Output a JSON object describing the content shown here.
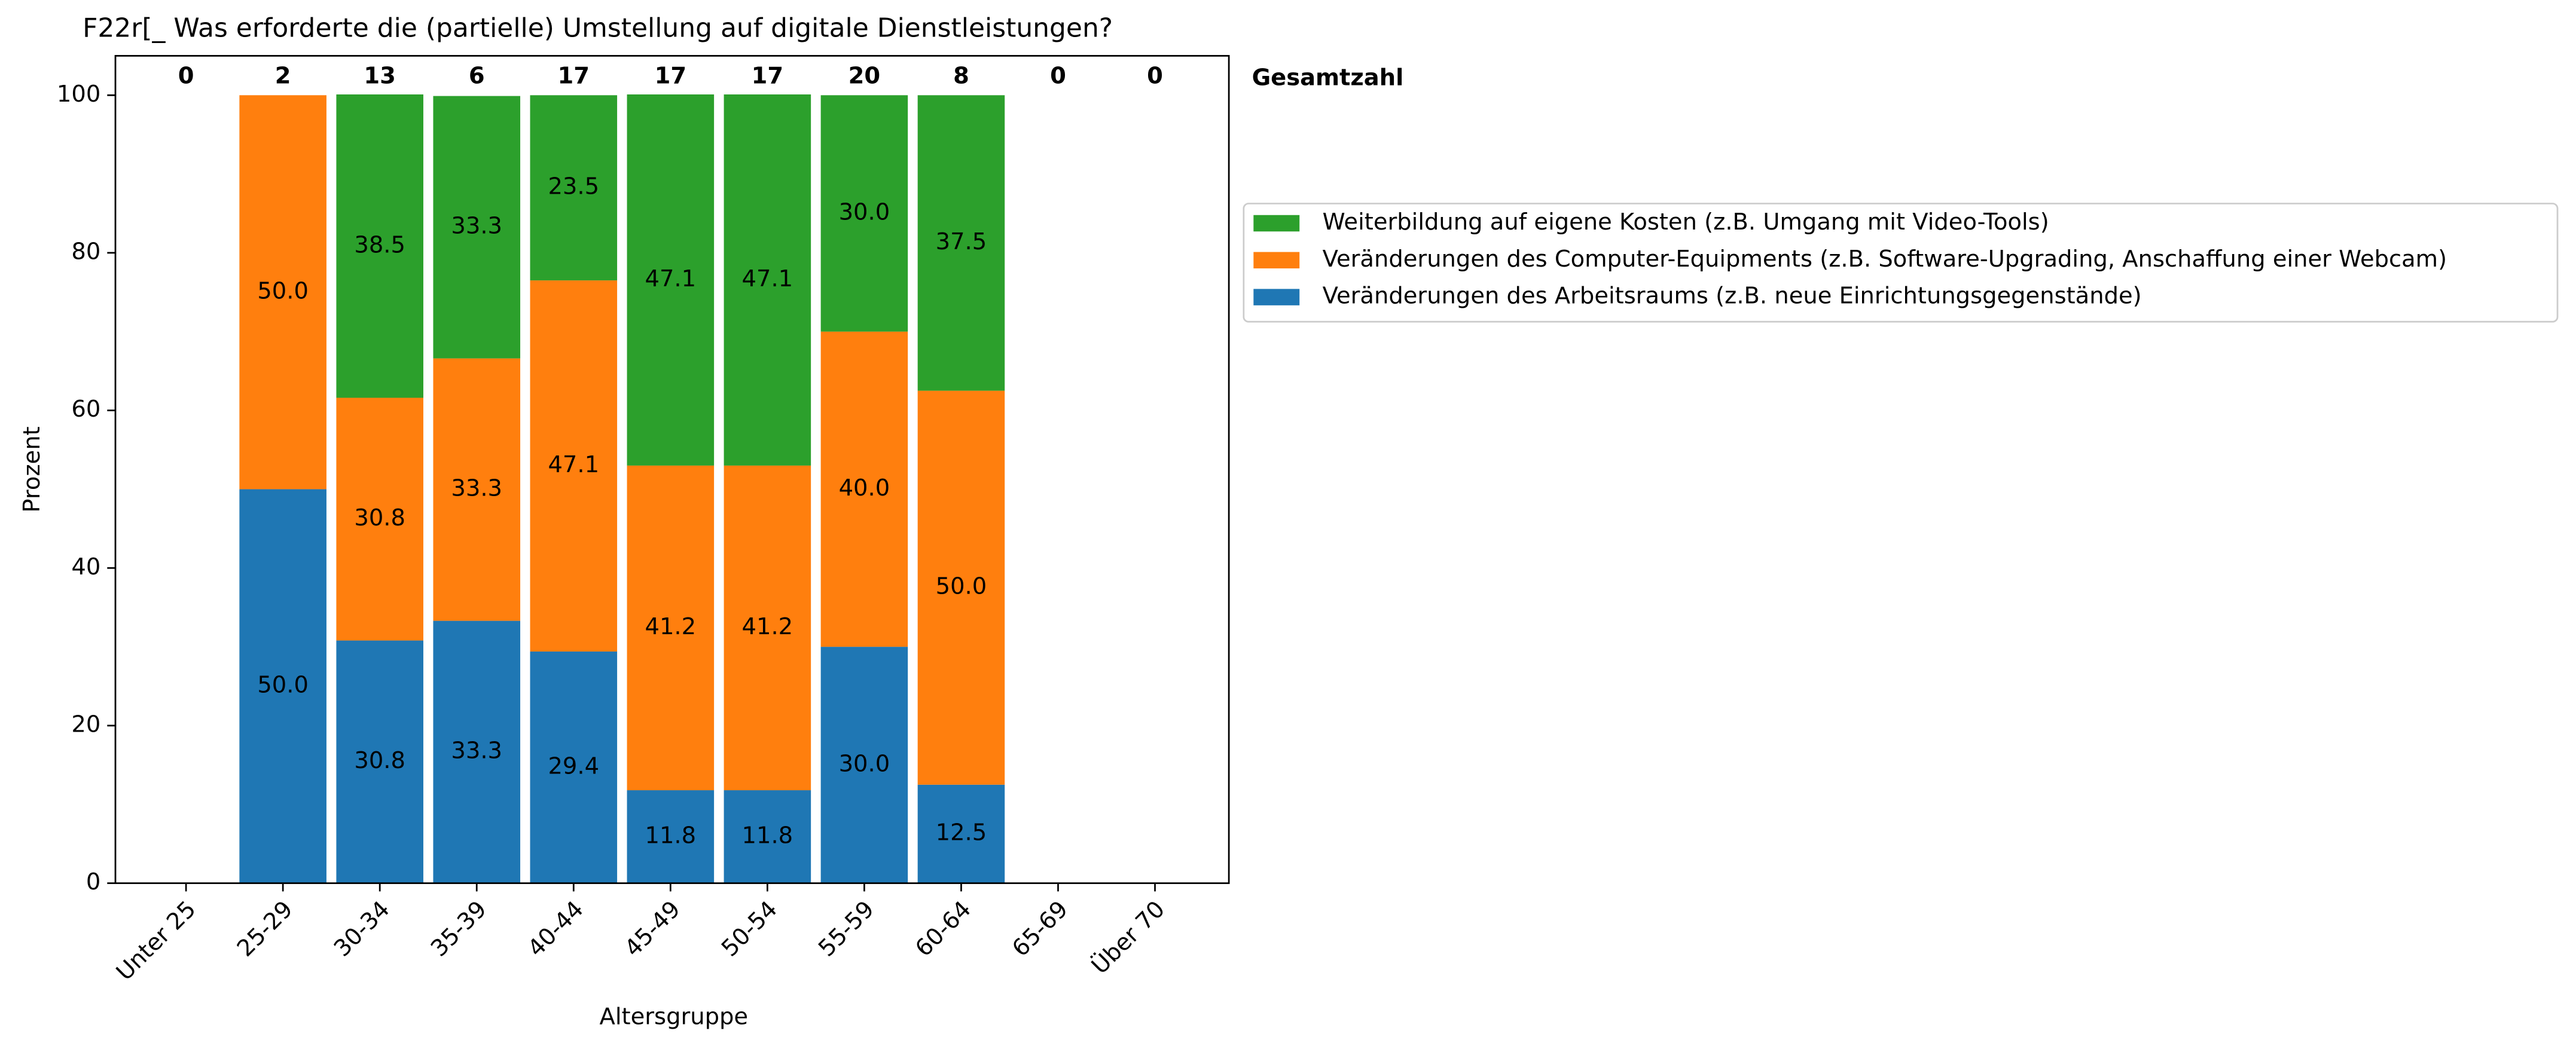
{
  "chart_data": {
    "type": "stacked_bar",
    "title": "F22r[_ Was erforderte die (partielle) Umstellung auf digitale Dienstleistungen?",
    "x_label": "Altersgruppe",
    "y_label": "Prozent",
    "categories": [
      "Unter 25",
      "25-29",
      "30-34",
      "35-39",
      "40-44",
      "45-49",
      "50-54",
      "55-59",
      "60-64",
      "65-69",
      "Über 70"
    ],
    "series": [
      {
        "name": "Veränderungen des Arbeitsraums (z.B. neue Einrichtungsgegenstände)",
        "color": "#1f77b4",
        "values": [
          null,
          50,
          30.8,
          33.3,
          29.4,
          11.8,
          11.8,
          30,
          12.5,
          null,
          null
        ],
        "value_labels": [
          null,
          "50.0",
          "30.8",
          "33.3",
          "29.4",
          "11.8",
          "11.8",
          "30.0",
          "12.5",
          null,
          null
        ]
      },
      {
        "name": "Veränderungen des Computer-Equipments (z.B. Software-Upgrading, Anschaffung einer Webcam)",
        "color": "#ff7f0e",
        "values": [
          null,
          50,
          30.8,
          33.3,
          47.1,
          41.2,
          41.2,
          40,
          50,
          null,
          null
        ],
        "value_labels": [
          null,
          "50.0",
          "30.8",
          "33.3",
          "47.1",
          "41.2",
          "41.2",
          "40.0",
          "50.0",
          null,
          null
        ]
      },
      {
        "name": "Weiterbildung auf eigene Kosten (z.B. Umgang mit Video-Tools)",
        "color": "#2ca02c",
        "values": [
          null,
          null,
          38.5,
          33.3,
          23.5,
          47.1,
          47.1,
          30,
          37.5,
          null,
          null
        ],
        "value_labels": [
          null,
          null,
          "38.5",
          "33.3",
          "23.5",
          "47.1",
          "47.1",
          "30.0",
          "37.5",
          null,
          null
        ]
      }
    ],
    "totals": {
      "label": "Gesamtzahl",
      "values": [
        0,
        2,
        13,
        6,
        17,
        17,
        17,
        20,
        8,
        0,
        0
      ]
    },
    "ylim": [
      0,
      105
    ],
    "yticks": [
      0,
      20,
      40,
      60,
      80,
      100
    ],
    "grid": false,
    "legend": "right"
  }
}
